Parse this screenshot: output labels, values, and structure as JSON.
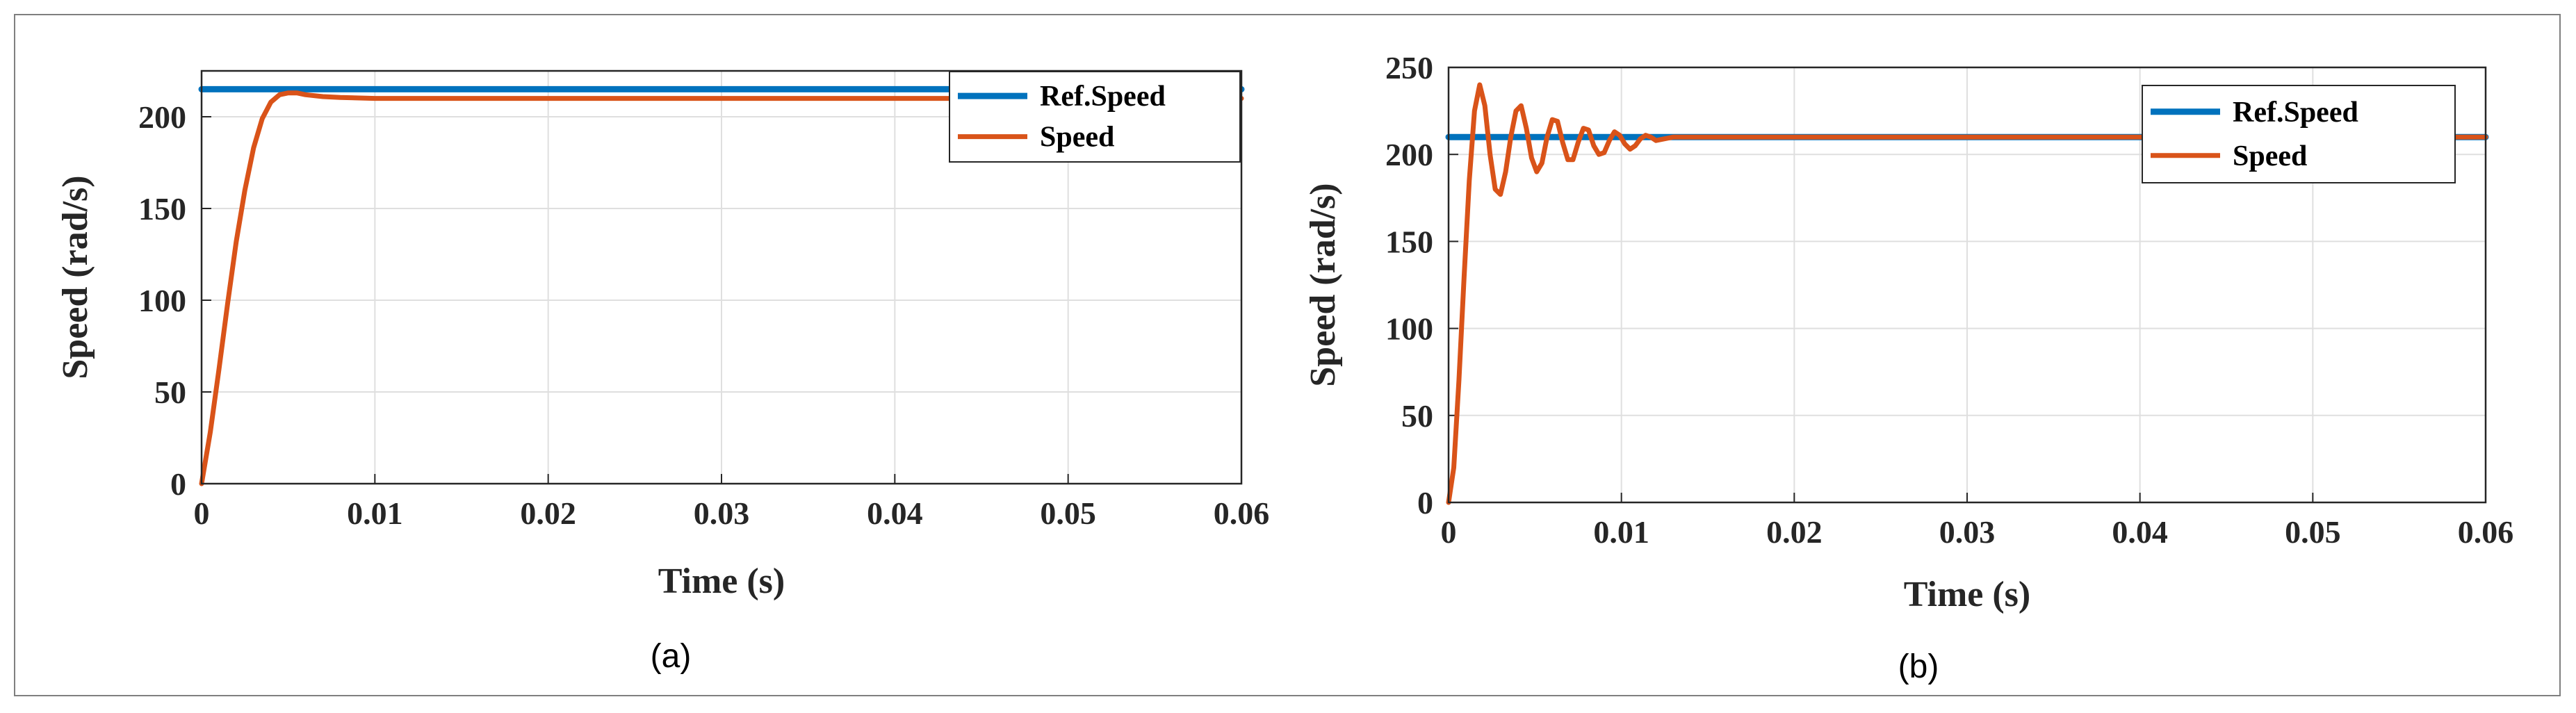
{
  "chart_data": [
    {
      "type": "line",
      "panel_label": "(a)",
      "xlabel": "Time (s)",
      "ylabel": "Speed (rad/s)",
      "xlim": [
        0,
        0.06
      ],
      "ylim": [
        0,
        225
      ],
      "x_ticks": [
        0,
        0.01,
        0.02,
        0.03,
        0.04,
        0.05,
        0.06
      ],
      "x_tick_labels": [
        "0",
        "0.01",
        "0.02",
        "0.03",
        "0.04",
        "0.05",
        "0.06"
      ],
      "y_ticks": [
        0,
        50,
        100,
        150,
        200
      ],
      "y_tick_labels": [
        "0",
        "50",
        "100",
        "150",
        "200"
      ],
      "grid": true,
      "legend_position": "top-right",
      "series": [
        {
          "name": "Ref.Speed",
          "color": "#0072BD",
          "x": [
            0,
            0.06
          ],
          "y": [
            215,
            215
          ]
        },
        {
          "name": "Speed",
          "color": "#D95319",
          "x": [
            0,
            0.0005,
            0.001,
            0.0015,
            0.002,
            0.0025,
            0.003,
            0.0035,
            0.004,
            0.0045,
            0.005,
            0.0055,
            0.006,
            0.007,
            0.008,
            0.01,
            0.015,
            0.02,
            0.03,
            0.04,
            0.05,
            0.06
          ],
          "y": [
            0,
            28,
            62,
            98,
            132,
            160,
            183,
            199,
            208,
            212,
            213,
            213,
            212,
            211,
            210.5,
            210,
            210,
            210,
            210,
            210,
            210,
            210
          ]
        }
      ]
    },
    {
      "type": "line",
      "panel_label": "(b)",
      "xlabel": "Time (s)",
      "ylabel": "Speed (rad/s)",
      "xlim": [
        0,
        0.06
      ],
      "ylim": [
        0,
        250
      ],
      "x_ticks": [
        0,
        0.01,
        0.02,
        0.03,
        0.04,
        0.05,
        0.06
      ],
      "x_tick_labels": [
        "0",
        "0.01",
        "0.02",
        "0.03",
        "0.04",
        "0.05",
        "0.06"
      ],
      "y_ticks": [
        0,
        50,
        100,
        150,
        200,
        250
      ],
      "y_tick_labels": [
        "0",
        "50",
        "100",
        "150",
        "200",
        "250"
      ],
      "grid": true,
      "legend_position": "top-right",
      "series": [
        {
          "name": "Ref.Speed",
          "color": "#0072BD",
          "x": [
            0,
            0.06
          ],
          "y": [
            210,
            210
          ]
        },
        {
          "name": "Speed",
          "color": "#D95319",
          "x": [
            0,
            0.0003,
            0.0006,
            0.0009,
            0.0012,
            0.0015,
            0.0018,
            0.0021,
            0.0024,
            0.0027,
            0.003,
            0.0033,
            0.0036,
            0.0039,
            0.0042,
            0.0045,
            0.0048,
            0.0051,
            0.0054,
            0.0057,
            0.006,
            0.0063,
            0.0066,
            0.0069,
            0.0072,
            0.0075,
            0.0078,
            0.0081,
            0.0084,
            0.0087,
            0.009,
            0.0093,
            0.0096,
            0.0099,
            0.0102,
            0.0105,
            0.0108,
            0.0111,
            0.0114,
            0.0117,
            0.012,
            0.0125,
            0.013,
            0.014,
            0.016,
            0.02,
            0.03,
            0.04,
            0.05,
            0.06
          ],
          "y": [
            0,
            20,
            70,
            130,
            185,
            225,
            240,
            228,
            200,
            180,
            177,
            190,
            210,
            225,
            228,
            215,
            198,
            190,
            195,
            210,
            220,
            219,
            207,
            197,
            197,
            207,
            215,
            214,
            205,
            200,
            201,
            208,
            213,
            211,
            206,
            203,
            205,
            209,
            211,
            210,
            208,
            209,
            210,
            210,
            210,
            210,
            210,
            210,
            210,
            210
          ]
        }
      ]
    }
  ]
}
